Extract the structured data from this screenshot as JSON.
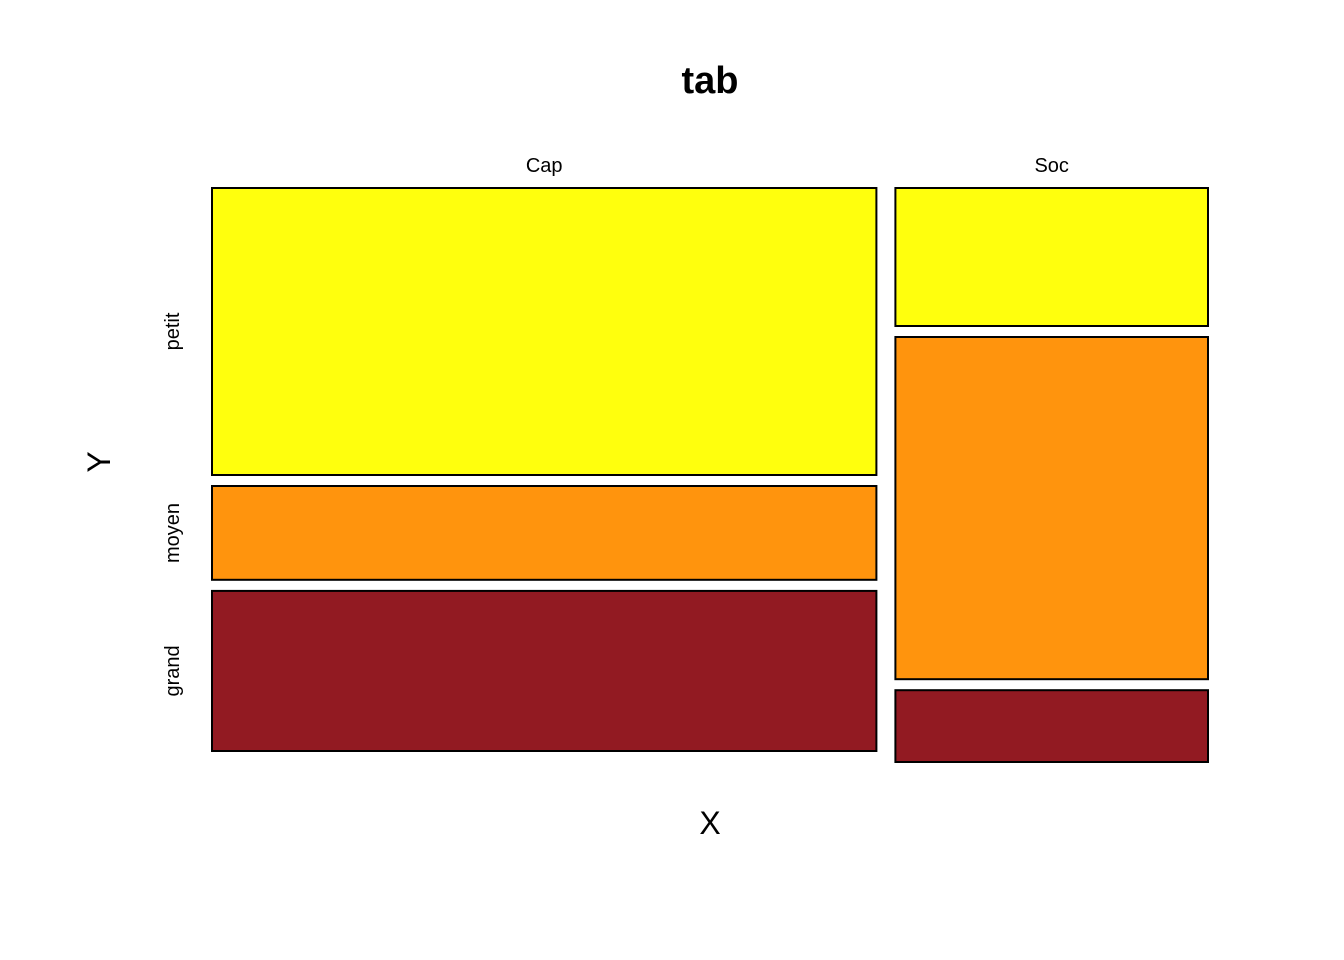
{
  "chart_data": {
    "type": "mosaic",
    "title": "tab",
    "xlabel": "X",
    "ylabel": "Y",
    "x_categories": [
      "Cap",
      "Soc"
    ],
    "y_categories": [
      "petit",
      "moyen",
      "grand"
    ],
    "x_proportions": [
      0.68,
      0.32
    ],
    "conditional_proportions": [
      {
        "x": "Cap",
        "values": [
          0.52,
          0.17,
          0.29
        ]
      },
      {
        "x": "Soc",
        "values": [
          0.25,
          0.62,
          0.13
        ]
      }
    ],
    "colors": {
      "petit": "#FFFF0D",
      "moyen": "#FF940D",
      "grand": "#921A22"
    }
  }
}
